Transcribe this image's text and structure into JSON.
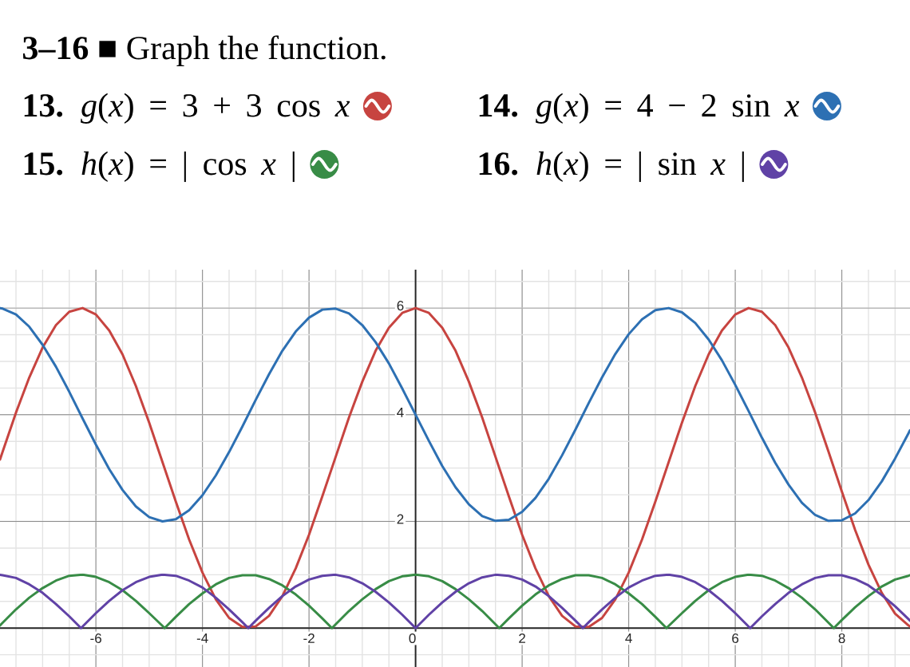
{
  "chart_data": {
    "type": "line",
    "title": "**3–16** ■ Graph the function.",
    "x": [
      -7.8,
      -7.75,
      -7.5,
      -7.25,
      -7,
      -6.75,
      -6.5,
      -6.25,
      -6,
      -5.75,
      -5.5,
      -5.25,
      -5,
      -4.75,
      -4.5,
      -4.25,
      -4,
      -3.75,
      -3.5,
      -3.25,
      -3,
      -2.75,
      -2.5,
      -2.25,
      -2,
      -1.75,
      -1.5,
      -1.25,
      -1,
      -0.75,
      -0.5,
      -0.25,
      0,
      0.25,
      0.5,
      0.75,
      1,
      1.25,
      1.5,
      1.75,
      2,
      2.25,
      2.5,
      2.75,
      3,
      3.25,
      3.5,
      3.75,
      4,
      4.25,
      4.5,
      4.75,
      5,
      5.25,
      5.5,
      5.75,
      6,
      6.25,
      6.5,
      6.75,
      7,
      7.25,
      7.5,
      7.75,
      8,
      8.25,
      8.5,
      8.75,
      9,
      9.25,
      9.28
    ],
    "series": [
      {
        "name": "**13.** *g*(*x*) = 3 + 3 cos *x*",
        "color": "#c74440",
        "values": [
          3.16,
          3.31,
          4.04,
          4.7,
          5.26,
          5.68,
          5.93,
          6.0,
          5.88,
          5.58,
          5.13,
          4.54,
          3.85,
          3.11,
          2.37,
          1.66,
          1.04,
          0.54,
          0.19,
          0.02,
          0.03,
          0.23,
          0.6,
          1.12,
          1.75,
          2.47,
          3.21,
          3.95,
          4.62,
          5.2,
          5.63,
          5.91,
          6.0,
          5.91,
          5.63,
          5.2,
          4.62,
          3.95,
          3.21,
          2.47,
          1.75,
          1.12,
          0.6,
          0.23,
          0.03,
          0.02,
          0.19,
          0.54,
          1.04,
          1.66,
          2.37,
          3.11,
          3.85,
          4.54,
          5.13,
          5.58,
          5.88,
          6.0,
          5.93,
          5.68,
          5.26,
          4.7,
          4.04,
          3.31,
          2.56,
          1.84,
          1.19,
          0.66,
          0.27,
          0.05,
          0.03
        ]
      },
      {
        "name": "**14.** *g*(*x*) = 4 − 2 sin *x*",
        "color": "#2d70b3",
        "values": [
          6.0,
          5.99,
          5.88,
          5.65,
          5.31,
          4.9,
          4.43,
          3.93,
          3.44,
          2.98,
          2.59,
          2.28,
          2.08,
          2.0,
          2.04,
          2.21,
          2.49,
          2.86,
          3.3,
          3.78,
          4.28,
          4.76,
          5.2,
          5.56,
          5.82,
          5.97,
          5.99,
          5.9,
          5.68,
          5.36,
          4.96,
          4.49,
          4.0,
          3.51,
          3.04,
          2.64,
          2.32,
          2.1,
          2.01,
          2.03,
          2.18,
          2.44,
          2.8,
          3.24,
          3.72,
          4.22,
          4.7,
          5.14,
          5.51,
          5.79,
          5.96,
          6.0,
          5.92,
          5.72,
          5.41,
          5.02,
          4.56,
          4.07,
          3.57,
          3.1,
          2.69,
          2.35,
          2.12,
          2.01,
          2.02,
          2.15,
          2.4,
          2.75,
          3.18,
          3.65,
          3.71
        ]
      },
      {
        "name": "**15.** *h*(*x*) = | cos *x* |",
        "color": "#388c46",
        "x": [
          -7.8,
          -7.75,
          -7.5,
          -7.25,
          -7,
          -6.75,
          -6.5,
          -6.25,
          -6,
          -5.75,
          -5.5,
          -5.25,
          -5,
          -4.75,
          -4.71,
          -4.5,
          -4.25,
          -4,
          -3.75,
          -3.5,
          -3.25,
          -3,
          -2.75,
          -2.5,
          -2.25,
          -2,
          -1.75,
          -1.57,
          -1.5,
          -1.25,
          -1,
          -0.75,
          -0.5,
          -0.25,
          0,
          0.25,
          0.5,
          0.75,
          1,
          1.25,
          1.5,
          1.57,
          1.75,
          2,
          2.25,
          2.5,
          2.75,
          3,
          3.25,
          3.5,
          3.75,
          4,
          4.25,
          4.5,
          4.71,
          4.75,
          5,
          5.25,
          5.5,
          5.75,
          6,
          6.25,
          6.5,
          6.75,
          7,
          7.25,
          7.5,
          7.75,
          7.85,
          8,
          8.25,
          8.5,
          8.75,
          9,
          9.25,
          9.28
        ],
        "values": [
          0.05,
          0.1,
          0.35,
          0.57,
          0.75,
          0.89,
          0.98,
          1.0,
          0.96,
          0.86,
          0.71,
          0.51,
          0.28,
          0.04,
          0,
          0.21,
          0.45,
          0.65,
          0.82,
          0.94,
          0.99,
          0.99,
          0.92,
          0.8,
          0.63,
          0.42,
          0.18,
          0,
          0.07,
          0.32,
          0.54,
          0.73,
          0.88,
          0.97,
          1.0,
          0.97,
          0.88,
          0.73,
          0.54,
          0.32,
          0.07,
          0,
          0.18,
          0.42,
          0.63,
          0.8,
          0.92,
          0.99,
          0.99,
          0.94,
          0.82,
          0.65,
          0.45,
          0.21,
          0,
          0.04,
          0.28,
          0.51,
          0.71,
          0.86,
          0.96,
          1.0,
          0.98,
          0.89,
          0.75,
          0.57,
          0.35,
          0.1,
          0,
          0.15,
          0.39,
          0.6,
          0.78,
          0.91,
          0.98,
          0.99
        ]
      },
      {
        "name": "**16.** *h*(*x*) = | sin *x* |",
        "color": "#6042a6",
        "x": [
          -7.8,
          -7.75,
          -7.5,
          -7.25,
          -7,
          -6.75,
          -6.5,
          -6.28,
          -6.25,
          -6,
          -5.75,
          -5.5,
          -5.25,
          -5,
          -4.75,
          -4.5,
          -4.25,
          -4,
          -3.75,
          -3.5,
          -3.25,
          -3.14,
          -3,
          -2.75,
          -2.5,
          -2.25,
          -2,
          -1.75,
          -1.5,
          -1.25,
          -1,
          -0.75,
          -0.5,
          -0.25,
          0,
          0.25,
          0.5,
          0.75,
          1,
          1.25,
          1.5,
          1.75,
          2,
          2.25,
          2.5,
          2.75,
          3,
          3.14,
          3.25,
          3.5,
          3.75,
          4,
          4.25,
          4.5,
          4.75,
          5,
          5.25,
          5.5,
          5.75,
          6,
          6.25,
          6.28,
          6.5,
          6.75,
          7,
          7.25,
          7.5,
          7.75,
          8,
          8.25,
          8.5,
          8.75,
          9,
          9.25,
          9.28
        ],
        "values": [
          1.0,
          0.99,
          0.94,
          0.82,
          0.66,
          0.45,
          0.22,
          0,
          0.03,
          0.28,
          0.51,
          0.71,
          0.86,
          0.96,
          1.0,
          0.98,
          0.89,
          0.76,
          0.57,
          0.35,
          0.11,
          0,
          0.14,
          0.38,
          0.6,
          0.78,
          0.91,
          0.98,
          1.0,
          0.95,
          0.84,
          0.68,
          0.48,
          0.25,
          0,
          0.25,
          0.48,
          0.68,
          0.84,
          0.95,
          1.0,
          0.98,
          0.91,
          0.78,
          0.6,
          0.38,
          0.14,
          0,
          0.11,
          0.35,
          0.57,
          0.76,
          0.89,
          0.98,
          1.0,
          0.96,
          0.86,
          0.71,
          0.51,
          0.28,
          0.03,
          0,
          0.22,
          0.45,
          0.66,
          0.82,
          0.94,
          0.99,
          0.99,
          0.92,
          0.8,
          0.62,
          0.41,
          0.17,
          0.14
        ]
      }
    ],
    "xlim": [
      -7.8,
      9.28
    ],
    "ylim": [
      -0.73,
      6.72
    ],
    "xticks": [
      -6,
      -4,
      -2,
      0,
      2,
      4,
      6,
      8
    ],
    "yticks": [
      2,
      4,
      6
    ],
    "grid": true,
    "legend": "top"
  }
}
